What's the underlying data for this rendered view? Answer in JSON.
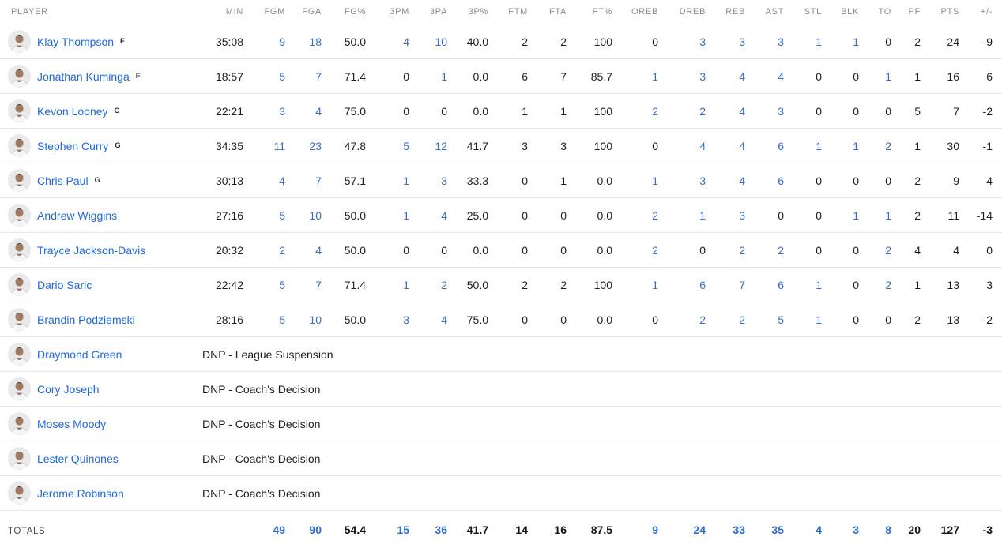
{
  "colors": {
    "player_name_link": "#2169d6",
    "stat_link_blue": "#3a6cc6",
    "stat_black": "#1d1d1d",
    "header_gray": "#8b8b8b",
    "row_divider": "#e7e7e7"
  },
  "table": {
    "columns": [
      "PLAYER",
      "MIN",
      "FGM",
      "FGA",
      "FG%",
      "3PM",
      "3PA",
      "3P%",
      "FTM",
      "FTA",
      "FT%",
      "OREB",
      "DREB",
      "REB",
      "AST",
      "STL",
      "BLK",
      "TO",
      "PF",
      "PTS",
      "+/-"
    ],
    "stat_keys": [
      "min",
      "fgm",
      "fga",
      "fgp",
      "tpm",
      "tpa",
      "tpp",
      "ftm",
      "fta",
      "ftp",
      "oreb",
      "dreb",
      "reb",
      "ast",
      "stl",
      "blk",
      "to",
      "pf",
      "pts",
      "pm"
    ],
    "link_stat_keys": [
      "fgm",
      "fga",
      "tpm",
      "tpa",
      "oreb",
      "dreb",
      "reb",
      "ast",
      "stl",
      "blk",
      "to"
    ],
    "players": [
      {
        "name": "Klay Thompson",
        "position": "F",
        "dnp": null,
        "stats": {
          "min": "35:08",
          "fgm": "9",
          "fga": "18",
          "fgp": "50.0",
          "tpm": "4",
          "tpa": "10",
          "tpp": "40.0",
          "ftm": "2",
          "fta": "2",
          "ftp": "100",
          "oreb": "0",
          "dreb": "3",
          "reb": "3",
          "ast": "3",
          "stl": "1",
          "blk": "1",
          "to": "0",
          "pf": "2",
          "pts": "24",
          "pm": "-9"
        }
      },
      {
        "name": "Jonathan Kuminga",
        "position": "F",
        "dnp": null,
        "stats": {
          "min": "18:57",
          "fgm": "5",
          "fga": "7",
          "fgp": "71.4",
          "tpm": "0",
          "tpa": "1",
          "tpp": "0.0",
          "ftm": "6",
          "fta": "7",
          "ftp": "85.7",
          "oreb": "1",
          "dreb": "3",
          "reb": "4",
          "ast": "4",
          "stl": "0",
          "blk": "0",
          "to": "1",
          "pf": "1",
          "pts": "16",
          "pm": "6"
        }
      },
      {
        "name": "Kevon Looney",
        "position": "C",
        "dnp": null,
        "stats": {
          "min": "22:21",
          "fgm": "3",
          "fga": "4",
          "fgp": "75.0",
          "tpm": "0",
          "tpa": "0",
          "tpp": "0.0",
          "ftm": "1",
          "fta": "1",
          "ftp": "100",
          "oreb": "2",
          "dreb": "2",
          "reb": "4",
          "ast": "3",
          "stl": "0",
          "blk": "0",
          "to": "0",
          "pf": "5",
          "pts": "7",
          "pm": "-2"
        }
      },
      {
        "name": "Stephen Curry",
        "position": "G",
        "dnp": null,
        "stats": {
          "min": "34:35",
          "fgm": "11",
          "fga": "23",
          "fgp": "47.8",
          "tpm": "5",
          "tpa": "12",
          "tpp": "41.7",
          "ftm": "3",
          "fta": "3",
          "ftp": "100",
          "oreb": "0",
          "dreb": "4",
          "reb": "4",
          "ast": "6",
          "stl": "1",
          "blk": "1",
          "to": "2",
          "pf": "1",
          "pts": "30",
          "pm": "-1"
        }
      },
      {
        "name": "Chris Paul",
        "position": "G",
        "dnp": null,
        "stats": {
          "min": "30:13",
          "fgm": "4",
          "fga": "7",
          "fgp": "57.1",
          "tpm": "1",
          "tpa": "3",
          "tpp": "33.3",
          "ftm": "0",
          "fta": "1",
          "ftp": "0.0",
          "oreb": "1",
          "dreb": "3",
          "reb": "4",
          "ast": "6",
          "stl": "0",
          "blk": "0",
          "to": "0",
          "pf": "2",
          "pts": "9",
          "pm": "4"
        }
      },
      {
        "name": "Andrew Wiggins",
        "position": null,
        "dnp": null,
        "stats": {
          "min": "27:16",
          "fgm": "5",
          "fga": "10",
          "fgp": "50.0",
          "tpm": "1",
          "tpa": "4",
          "tpp": "25.0",
          "ftm": "0",
          "fta": "0",
          "ftp": "0.0",
          "oreb": "2",
          "dreb": "1",
          "reb": "3",
          "ast": "0",
          "stl": "0",
          "blk": "1",
          "to": "1",
          "pf": "2",
          "pts": "11",
          "pm": "-14"
        }
      },
      {
        "name": "Trayce Jackson-Davis",
        "position": null,
        "dnp": null,
        "stats": {
          "min": "20:32",
          "fgm": "2",
          "fga": "4",
          "fgp": "50.0",
          "tpm": "0",
          "tpa": "0",
          "tpp": "0.0",
          "ftm": "0",
          "fta": "0",
          "ftp": "0.0",
          "oreb": "2",
          "dreb": "0",
          "reb": "2",
          "ast": "2",
          "stl": "0",
          "blk": "0",
          "to": "2",
          "pf": "4",
          "pts": "4",
          "pm": "0"
        }
      },
      {
        "name": "Dario Saric",
        "position": null,
        "dnp": null,
        "stats": {
          "min": "22:42",
          "fgm": "5",
          "fga": "7",
          "fgp": "71.4",
          "tpm": "1",
          "tpa": "2",
          "tpp": "50.0",
          "ftm": "2",
          "fta": "2",
          "ftp": "100",
          "oreb": "1",
          "dreb": "6",
          "reb": "7",
          "ast": "6",
          "stl": "1",
          "blk": "0",
          "to": "2",
          "pf": "1",
          "pts": "13",
          "pm": "3"
        }
      },
      {
        "name": "Brandin Podziemski",
        "position": null,
        "dnp": null,
        "stats": {
          "min": "28:16",
          "fgm": "5",
          "fga": "10",
          "fgp": "50.0",
          "tpm": "3",
          "tpa": "4",
          "tpp": "75.0",
          "ftm": "0",
          "fta": "0",
          "ftp": "0.0",
          "oreb": "0",
          "dreb": "2",
          "reb": "2",
          "ast": "5",
          "stl": "1",
          "blk": "0",
          "to": "0",
          "pf": "2",
          "pts": "13",
          "pm": "-2"
        }
      },
      {
        "name": "Draymond Green",
        "position": null,
        "dnp": "DNP - League Suspension",
        "stats": null
      },
      {
        "name": "Cory Joseph",
        "position": null,
        "dnp": "DNP - Coach's Decision",
        "stats": null
      },
      {
        "name": "Moses Moody",
        "position": null,
        "dnp": "DNP - Coach's Decision",
        "stats": null
      },
      {
        "name": "Lester Quinones",
        "position": null,
        "dnp": "DNP - Coach's Decision",
        "stats": null
      },
      {
        "name": "Jerome Robinson",
        "position": null,
        "dnp": "DNP - Coach's Decision",
        "stats": null
      }
    ],
    "totals": {
      "label": "TOTALS",
      "stats": {
        "min": "",
        "fgm": "49",
        "fga": "90",
        "fgp": "54.4",
        "tpm": "15",
        "tpa": "36",
        "tpp": "41.7",
        "ftm": "14",
        "fta": "16",
        "ftp": "87.5",
        "oreb": "9",
        "dreb": "24",
        "reb": "33",
        "ast": "35",
        "stl": "4",
        "blk": "3",
        "to": "8",
        "pf": "20",
        "pts": "127",
        "pm": "-3"
      }
    }
  }
}
